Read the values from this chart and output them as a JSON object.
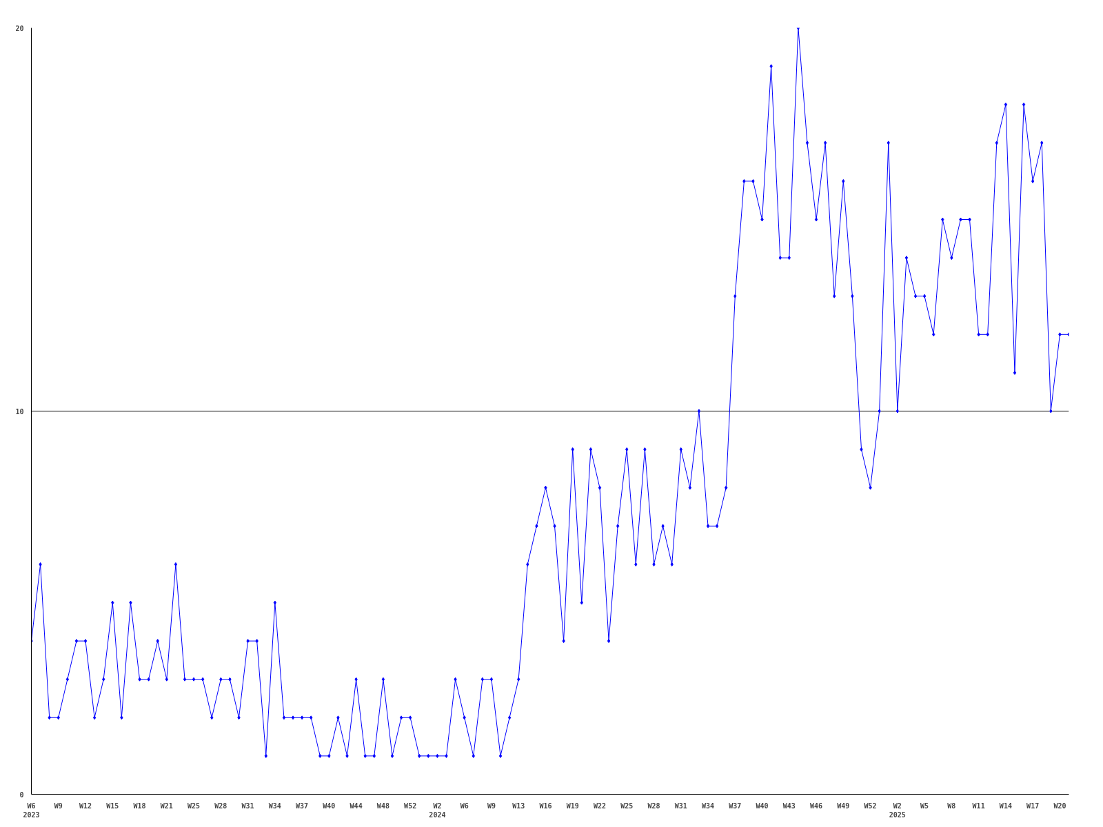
{
  "chart_data": {
    "type": "line",
    "color": "#0000ff",
    "marker": "diamond",
    "line_style": "solid",
    "grid": "y",
    "categories": [
      "W6\n2023",
      null,
      null,
      "W9",
      null,
      null,
      "W12",
      null,
      null,
      "W15",
      null,
      null,
      "W18",
      null,
      null,
      "W21",
      null,
      null,
      "W25",
      null,
      null,
      "W28",
      null,
      null,
      "W31",
      null,
      null,
      "W34",
      null,
      null,
      "W37",
      null,
      null,
      "W40",
      null,
      null,
      "W44",
      null,
      null,
      "W48",
      null,
      null,
      "W52",
      null,
      null,
      "W2\n2024",
      null,
      null,
      "W6",
      null,
      null,
      "W9",
      null,
      null,
      "W13",
      null,
      null,
      "W16",
      null,
      null,
      "W19",
      null,
      null,
      "W22",
      null,
      null,
      "W25",
      null,
      null,
      "W28",
      null,
      null,
      "W31",
      null,
      null,
      "W34",
      null,
      null,
      "W37",
      null,
      null,
      "W40",
      null,
      null,
      "W43",
      null,
      null,
      "W46",
      null,
      null,
      "W49",
      null,
      null,
      "W52",
      null,
      null,
      "W2\n2025",
      null,
      null,
      "W5",
      null,
      null,
      "W8",
      null,
      null,
      "W11",
      null,
      null,
      "W14",
      null,
      null,
      "W17",
      null,
      null,
      "W20",
      null
    ],
    "values": [
      4,
      6,
      2,
      2,
      3,
      4,
      4,
      2,
      3,
      5,
      2,
      5,
      3,
      3,
      4,
      3,
      6,
      3,
      3,
      3,
      2,
      3,
      3,
      2,
      4,
      4,
      1,
      5,
      2,
      2,
      2,
      2,
      1,
      1,
      2,
      1,
      3,
      1,
      1,
      3,
      1,
      2,
      2,
      1,
      1,
      1,
      1,
      3,
      2,
      1,
      3,
      3,
      1,
      2,
      3,
      6,
      7,
      8,
      7,
      4,
      9,
      5,
      9,
      8,
      4,
      7,
      9,
      6,
      9,
      6,
      7,
      6,
      9,
      8,
      10,
      7,
      7,
      8,
      13,
      16,
      16,
      15,
      19,
      14,
      14,
      20,
      17,
      15,
      17,
      13,
      16,
      13,
      9,
      8,
      10,
      17,
      10,
      14,
      13,
      13,
      12,
      15,
      14,
      15,
      15,
      12,
      12,
      17,
      18,
      11,
      18,
      16,
      17,
      10,
      12,
      12
    ],
    "ylim": [
      0,
      20
    ],
    "yticks": [
      0,
      10,
      20
    ]
  }
}
